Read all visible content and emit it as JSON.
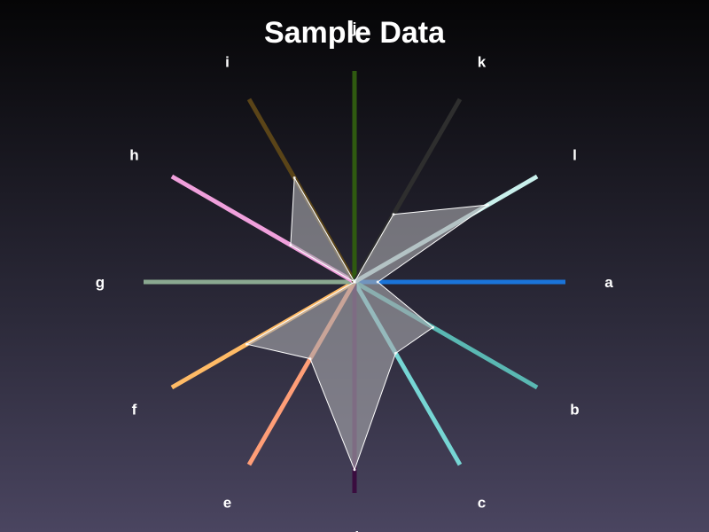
{
  "chart_data": {
    "type": "radar",
    "title": "Sample Data",
    "categories": [
      "a",
      "b",
      "c",
      "d",
      "e",
      "f",
      "g",
      "h",
      "i",
      "j",
      "k",
      "l"
    ],
    "values": [
      11,
      43,
      39,
      89,
      42,
      59,
      0,
      35,
      57,
      0,
      37,
      73
    ],
    "rmax": 100,
    "axis_colors": [
      "#1a74d9",
      "#5ab8b3",
      "#76d6d4",
      "#3a0d3f",
      "#ff9e77",
      "#ffbb66",
      "#8aa890",
      "#f0a0dc",
      "#5a4418",
      "#2f5a10",
      "#2e2e2e",
      "#c9f0ec"
    ],
    "fill_color": "#a8a8ad",
    "grid": false
  }
}
